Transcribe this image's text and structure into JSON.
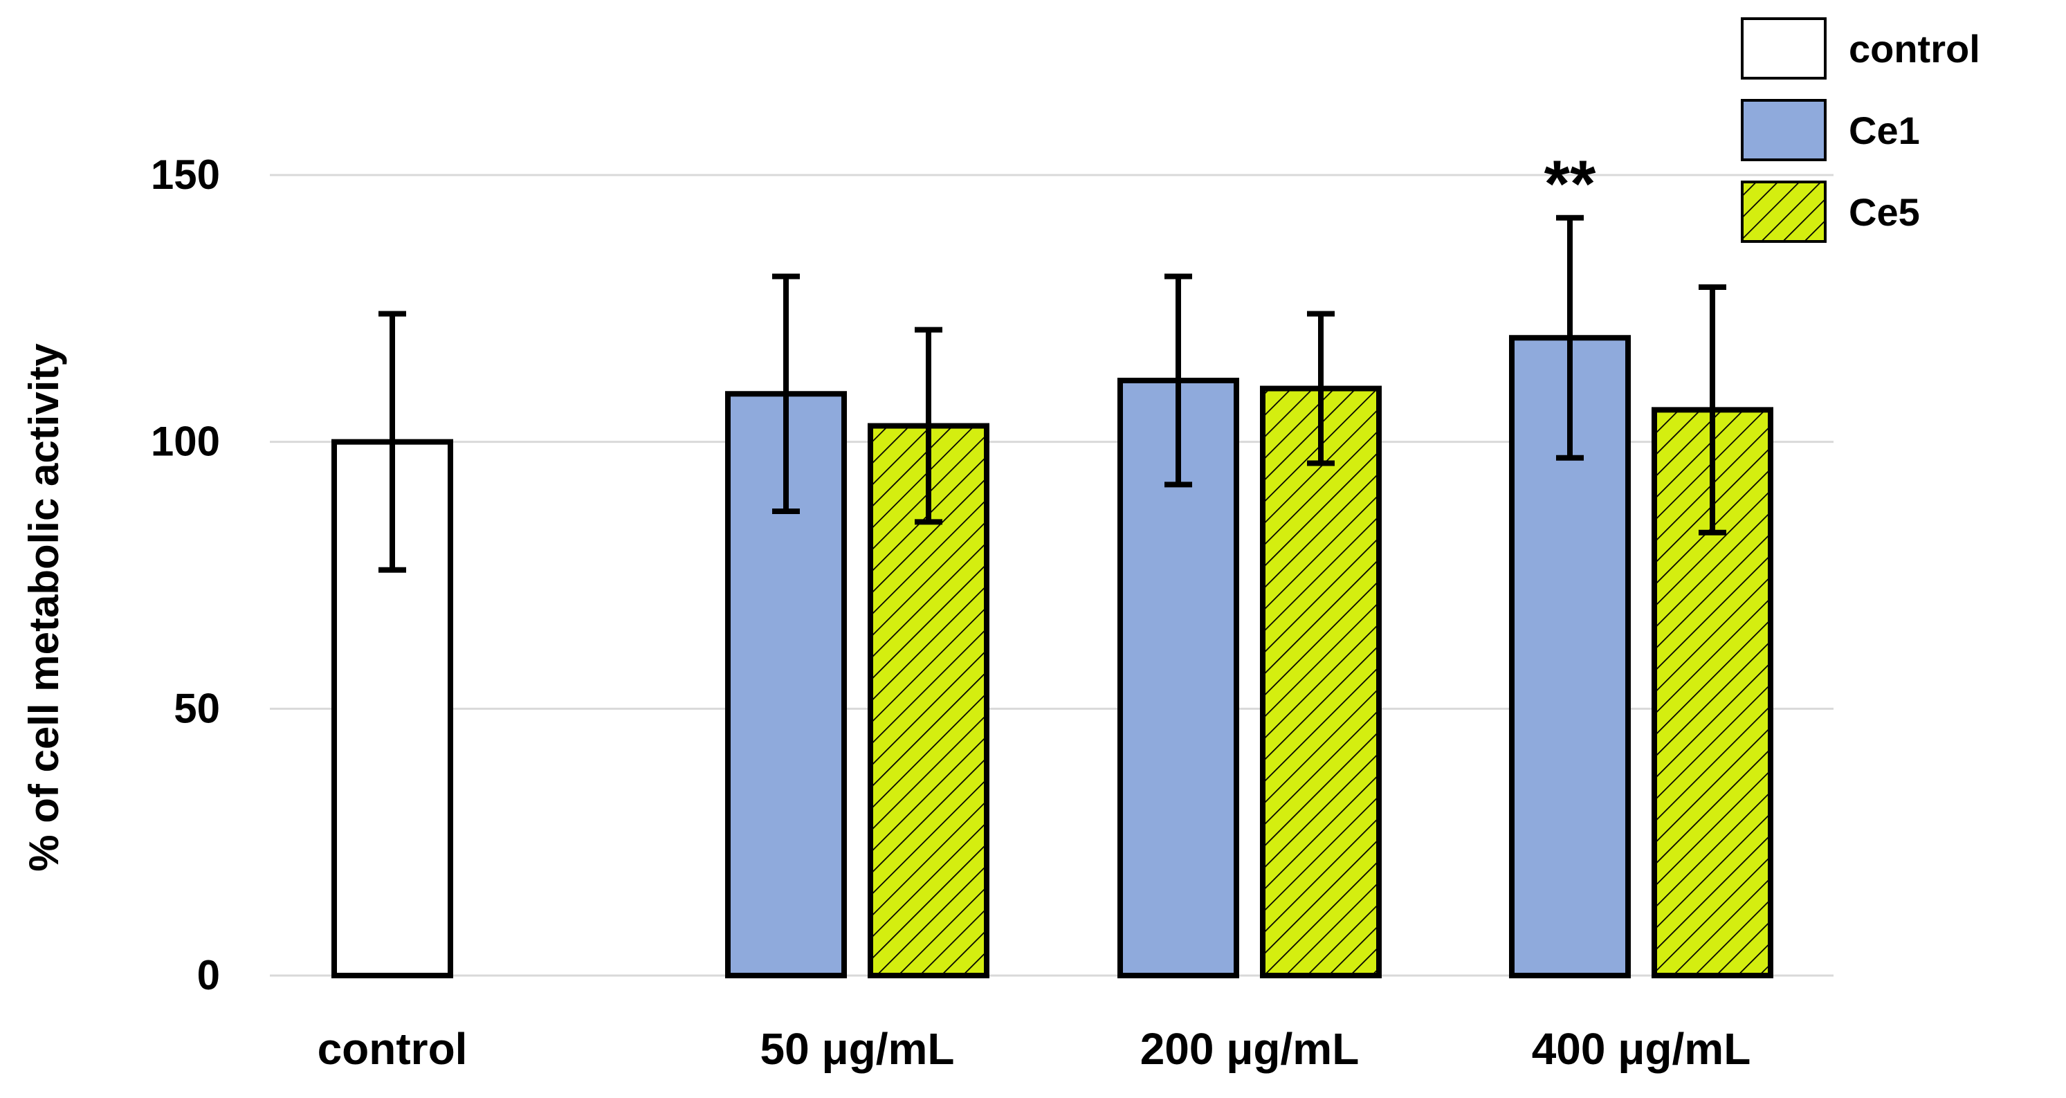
{
  "chart_data": {
    "type": "bar",
    "title": "",
    "xlabel": "",
    "ylabel": "% of cell metabolic activity",
    "ylim": [
      0,
      150
    ],
    "yticks": [
      0,
      50,
      100,
      150
    ],
    "grid": true,
    "legend_position": "top-right",
    "groups": [
      {
        "label": "control",
        "bars": [
          {
            "series": "control",
            "value": 100,
            "error": 24
          }
        ]
      },
      {
        "label": "50 μg/mL",
        "bars": [
          {
            "series": "Ce1",
            "value": 109,
            "error": 22
          },
          {
            "series": "Ce5",
            "value": 103,
            "error": 18
          }
        ]
      },
      {
        "label": "200 μg/mL",
        "bars": [
          {
            "series": "Ce1",
            "value": 111.5,
            "error": 19.5
          },
          {
            "series": "Ce5",
            "value": 110,
            "error": 14
          }
        ]
      },
      {
        "label": "400 μg/mL",
        "bars": [
          {
            "series": "Ce1",
            "value": 119.5,
            "error": 22.5,
            "annotation": "**"
          },
          {
            "series": "Ce5",
            "value": 106,
            "error": 23
          }
        ]
      }
    ],
    "series": [
      {
        "name": "control",
        "color": "#ffffff",
        "pattern": "none"
      },
      {
        "name": "Ce1",
        "color": "#8faadc",
        "pattern": "none"
      },
      {
        "name": "Ce5",
        "color": "#d4ee10",
        "pattern": "diagonal-hatch"
      }
    ]
  }
}
